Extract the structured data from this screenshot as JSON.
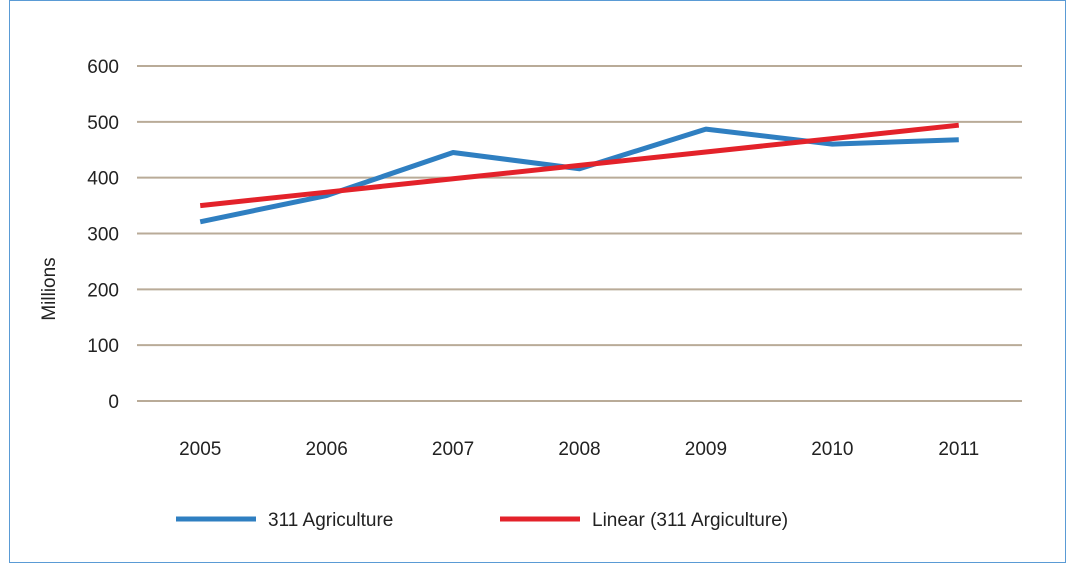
{
  "chart_data": {
    "type": "line",
    "title": "",
    "xlabel": "",
    "ylabel": "Millions",
    "categories": [
      "2005",
      "2006",
      "2007",
      "2008",
      "2009",
      "2010",
      "2011"
    ],
    "series": [
      {
        "name": "311 Agriculture",
        "color": "#2f7fc1",
        "values": [
          321,
          368,
          445,
          416,
          487,
          460,
          468
        ]
      },
      {
        "name": "Linear (311 Argiculture)",
        "color": "#e3222a",
        "values": [
          350,
          374,
          398,
          422,
          446,
          470,
          494
        ]
      }
    ],
    "ylim": [
      0,
      600
    ],
    "yticks": [
      0,
      100,
      200,
      300,
      400,
      500,
      600
    ],
    "grid": true,
    "gridline_color": "#b9ab98",
    "frame_color": "#5a9bd5",
    "legend_position": "bottom"
  }
}
